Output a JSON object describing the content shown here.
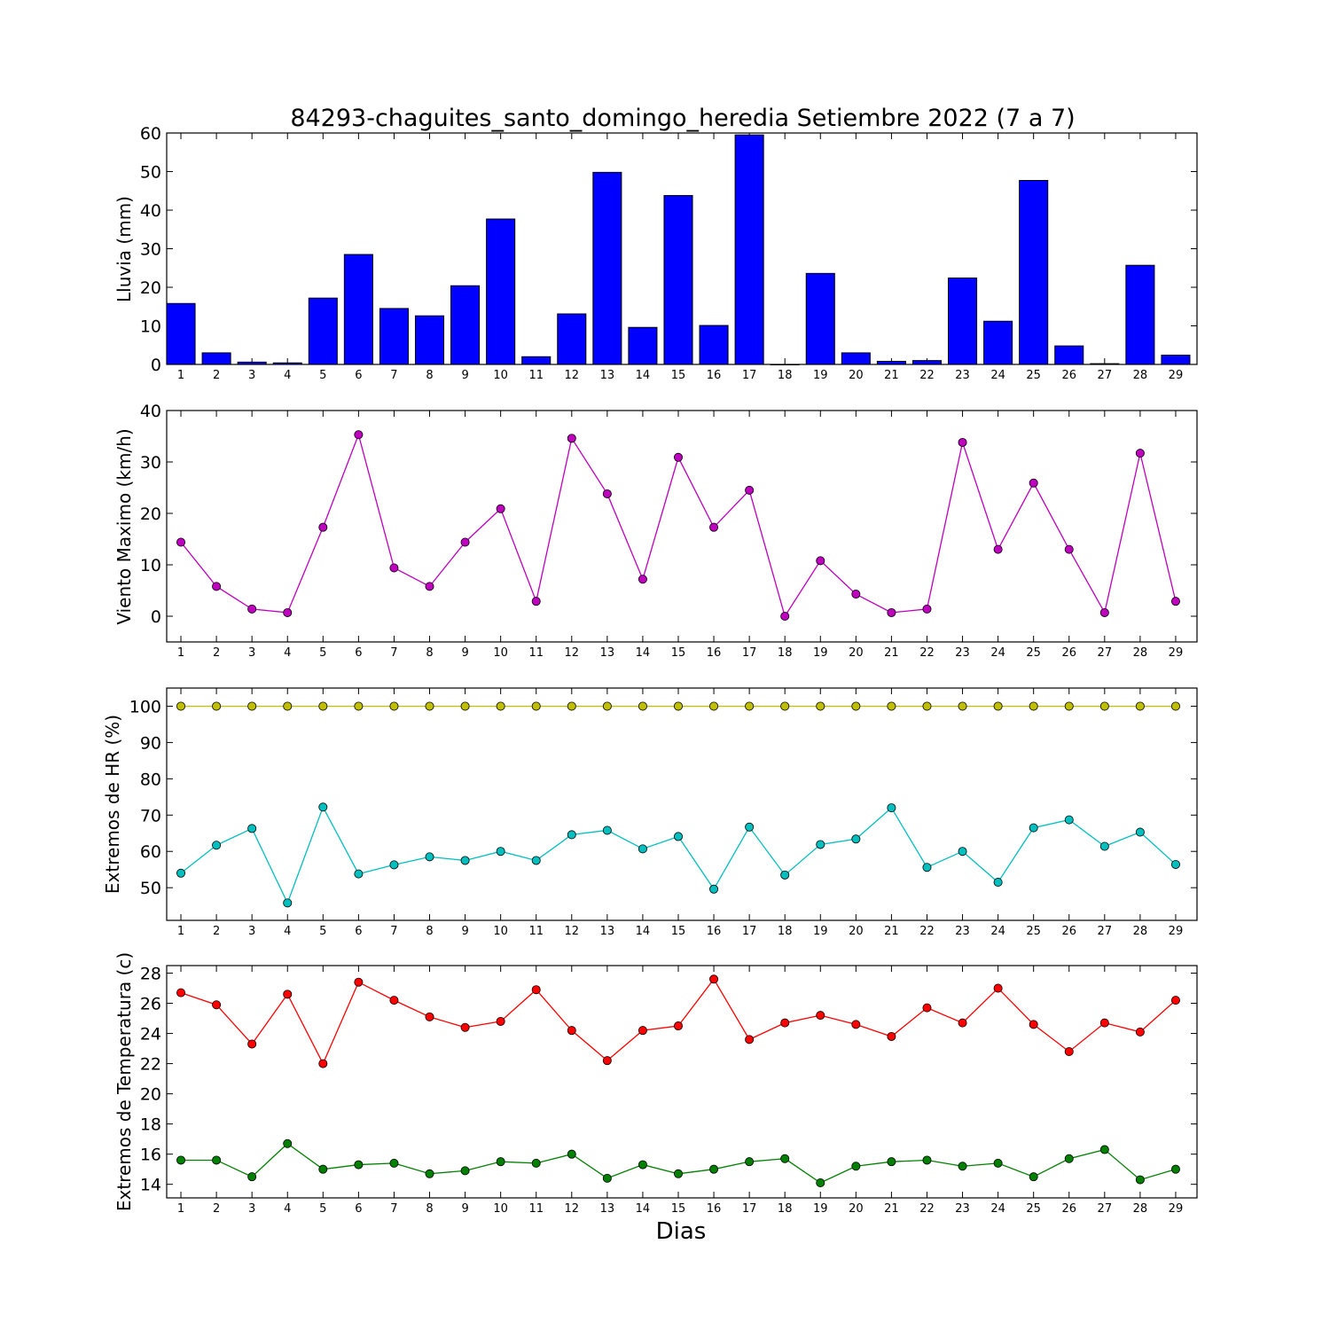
{
  "chart_data": [
    {
      "type": "bar",
      "title": "84293-chaguites_santo_domingo_heredia Setiembre 2022  (7 a 7)",
      "ylabel": "Lluvia (mm)",
      "xlabel": "",
      "ylim": [
        0,
        60
      ],
      "yticks": [
        0,
        10,
        20,
        30,
        40,
        50,
        60
      ],
      "categories": [
        "1",
        "2",
        "3",
        "4",
        "5",
        "6",
        "7",
        "8",
        "9",
        "10",
        "11",
        "12",
        "13",
        "14",
        "15",
        "16",
        "17",
        "18",
        "19",
        "20",
        "21",
        "22",
        "23",
        "24",
        "25",
        "26",
        "27",
        "28",
        "29"
      ],
      "values": [
        15.8,
        3.0,
        0.6,
        0.4,
        17.2,
        28.5,
        14.5,
        12.6,
        20.4,
        37.7,
        2.0,
        13.1,
        49.8,
        9.6,
        43.8,
        10.1,
        59.5,
        0.0,
        23.6,
        3.0,
        0.8,
        1.0,
        22.4,
        11.2,
        47.7,
        4.8,
        0.2,
        25.7,
        2.4
      ],
      "color": "#0000ff",
      "grid": false
    },
    {
      "type": "line",
      "title": "",
      "ylabel": "Viento Maximo (km/h)",
      "xlabel": "",
      "ylim": [
        -5,
        40
      ],
      "yticks": [
        0,
        10,
        20,
        30,
        40
      ],
      "x": [
        1,
        2,
        3,
        4,
        5,
        6,
        7,
        8,
        9,
        10,
        11,
        12,
        13,
        14,
        15,
        16,
        17,
        18,
        19,
        20,
        21,
        22,
        23,
        24,
        25,
        26,
        27,
        28,
        29
      ],
      "series": [
        {
          "values": [
            14.4,
            5.8,
            1.4,
            0.7,
            17.3,
            35.3,
            9.4,
            5.8,
            14.4,
            20.9,
            2.9,
            34.6,
            23.8,
            7.2,
            30.9,
            17.3,
            24.5,
            0.0,
            10.8,
            4.3,
            0.7,
            1.4,
            33.8,
            13.0,
            25.9,
            13.0,
            0.7,
            31.7,
            2.9
          ],
          "color": "#bf00bf"
        }
      ],
      "grid": false
    },
    {
      "type": "line",
      "title": "",
      "ylabel": "Extremos de HR (%)",
      "xlabel": "",
      "ylim": [
        41,
        105
      ],
      "yticks": [
        50,
        60,
        70,
        80,
        90,
        100
      ],
      "x": [
        1,
        2,
        3,
        4,
        5,
        6,
        7,
        8,
        9,
        10,
        11,
        12,
        13,
        14,
        15,
        16,
        17,
        18,
        19,
        20,
        21,
        22,
        23,
        24,
        25,
        26,
        27,
        28,
        29
      ],
      "series": [
        {
          "values": [
            100,
            100,
            100,
            100,
            100,
            100,
            100,
            100,
            100,
            100,
            100,
            100,
            100,
            100,
            100,
            100,
            100,
            100,
            100,
            100,
            100,
            100,
            100,
            100,
            100,
            100,
            100,
            100,
            100
          ],
          "color": "#bfbf00"
        },
        {
          "values": [
            54.0,
            61.7,
            66.3,
            45.8,
            72.2,
            53.8,
            56.3,
            58.5,
            57.5,
            60.0,
            57.5,
            64.6,
            65.8,
            60.7,
            64.1,
            49.6,
            66.7,
            53.5,
            61.9,
            63.4,
            72.0,
            55.6,
            60.0,
            51.5,
            66.5,
            68.7,
            61.4,
            65.3,
            56.4
          ],
          "color": "#00bfbf"
        }
      ],
      "grid": false
    },
    {
      "type": "line",
      "title": "",
      "ylabel": "Extremos de Temperatura (c)",
      "xlabel": "Dias",
      "ylim": [
        13.1,
        28.5
      ],
      "yticks": [
        14,
        16,
        18,
        20,
        22,
        24,
        26,
        28
      ],
      "x": [
        1,
        2,
        3,
        4,
        5,
        6,
        7,
        8,
        9,
        10,
        11,
        12,
        13,
        14,
        15,
        16,
        17,
        18,
        19,
        20,
        21,
        22,
        23,
        24,
        25,
        26,
        27,
        28,
        29
      ],
      "series": [
        {
          "values": [
            26.7,
            25.9,
            23.3,
            26.6,
            22.0,
            27.4,
            26.2,
            25.1,
            24.4,
            24.8,
            26.9,
            24.2,
            22.2,
            24.2,
            24.5,
            27.6,
            23.6,
            24.7,
            25.2,
            24.6,
            23.8,
            25.7,
            24.7,
            27.0,
            24.6,
            22.8,
            24.7,
            24.1,
            26.2
          ],
          "color": "#ff0000"
        },
        {
          "values": [
            15.6,
            15.6,
            14.5,
            16.7,
            15.0,
            15.3,
            15.4,
            14.7,
            14.9,
            15.5,
            15.4,
            16.0,
            14.4,
            15.3,
            14.7,
            15.0,
            15.5,
            15.7,
            14.1,
            15.2,
            15.5,
            15.6,
            15.2,
            15.4,
            14.5,
            15.7,
            16.3,
            14.3,
            15.0
          ],
          "color": "#008000"
        }
      ],
      "grid": false
    }
  ]
}
